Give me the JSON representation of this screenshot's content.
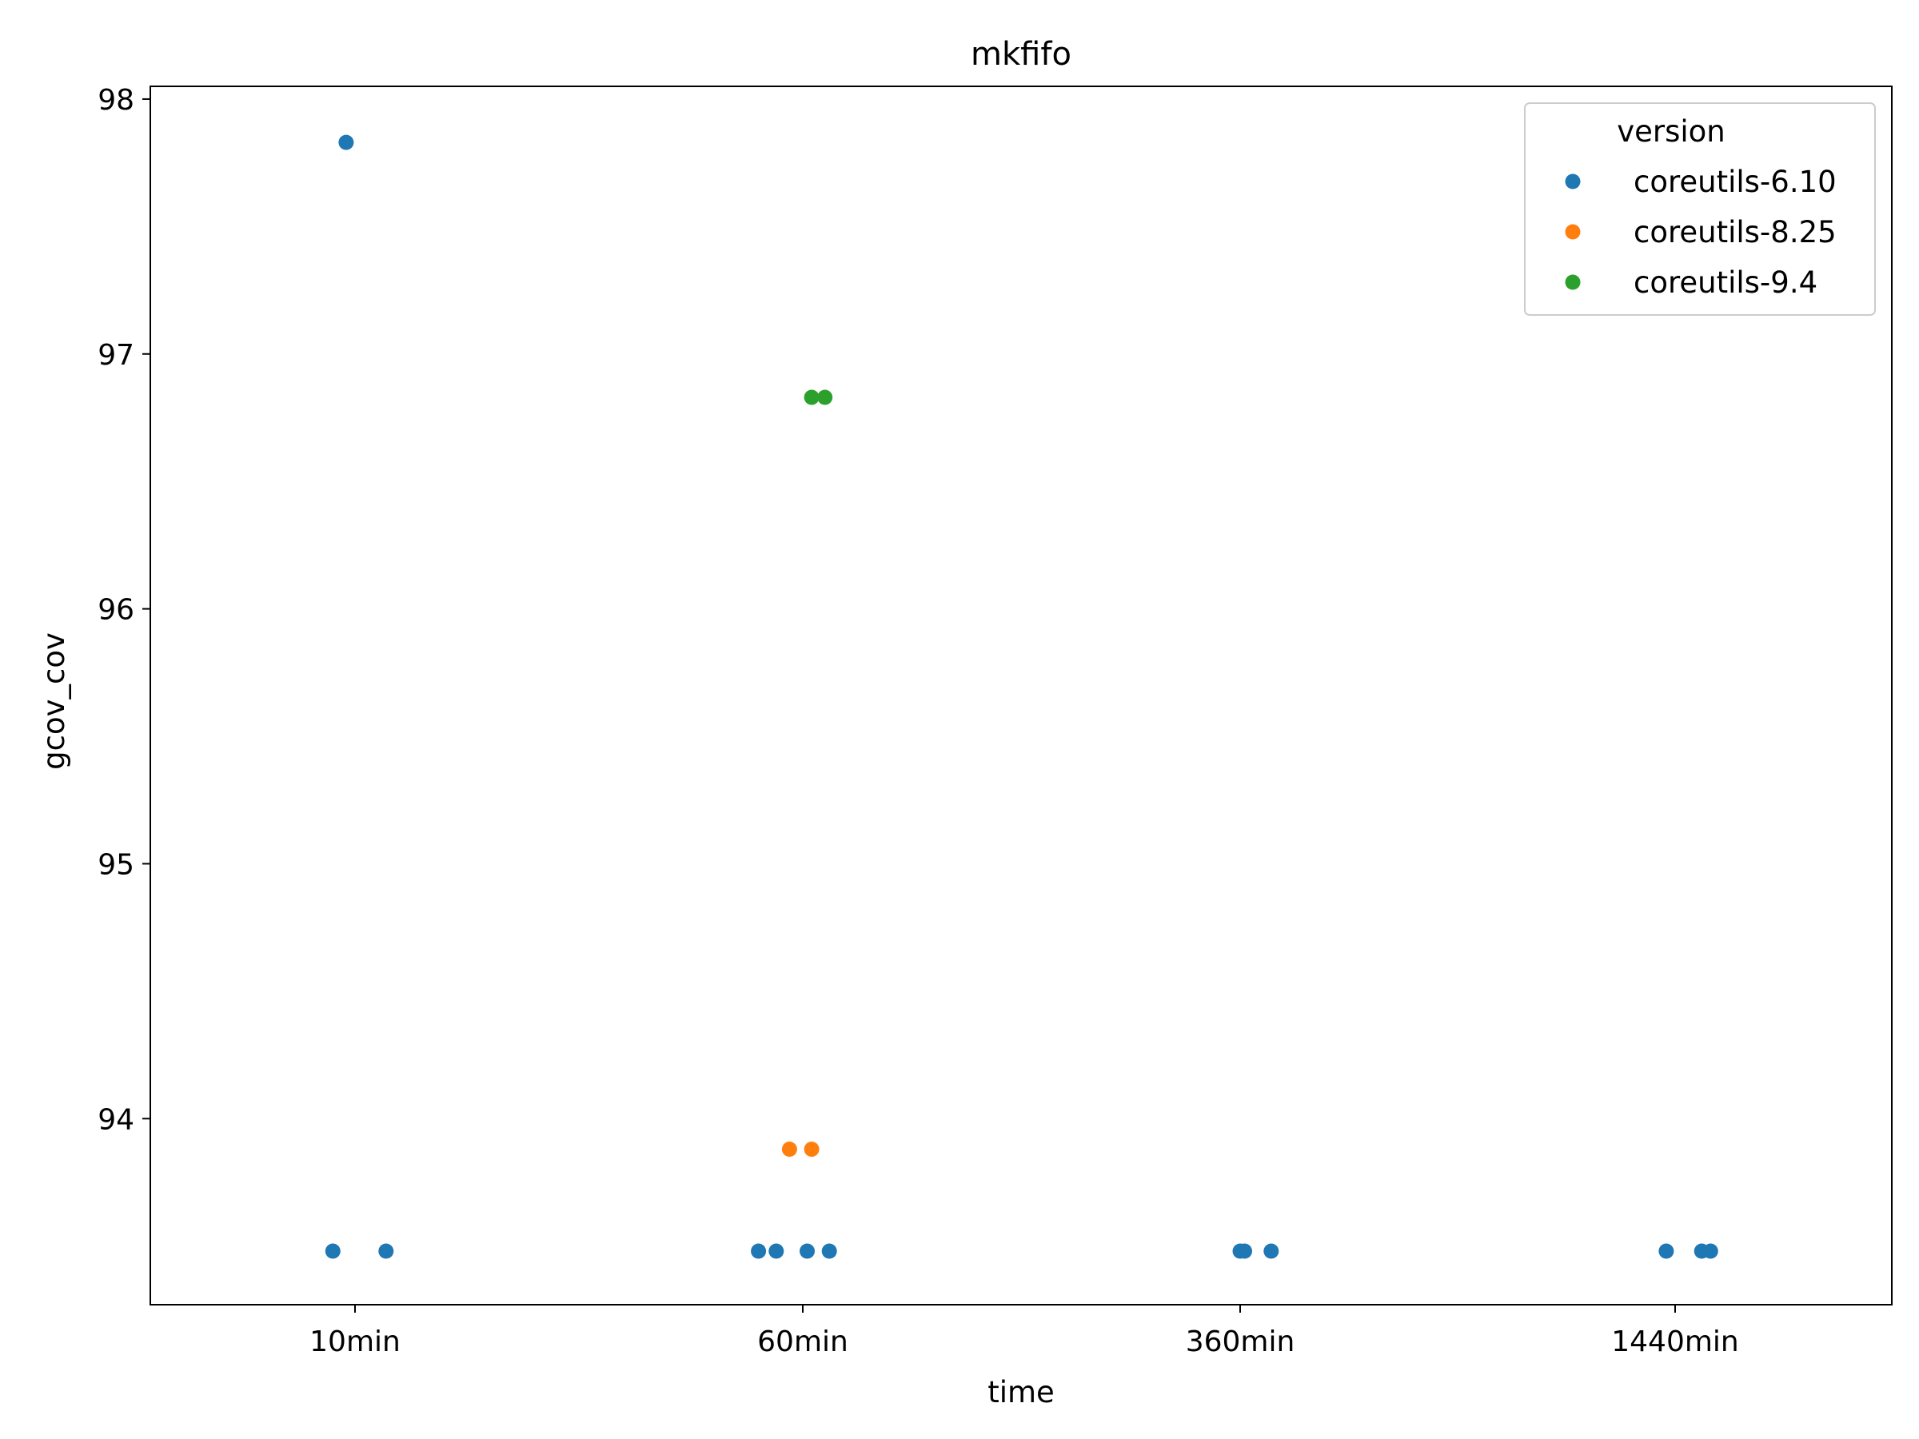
{
  "chart_data": {
    "type": "scatter",
    "title": "mkfifo",
    "xlabel": "time",
    "ylabel": "gcov_cov",
    "categories": [
      "10min",
      "60min",
      "360min",
      "1440min"
    ],
    "yticks": [
      94,
      95,
      96,
      97,
      98
    ],
    "ylim": [
      93.27,
      98.05
    ],
    "grid": false,
    "legend": {
      "title": "version",
      "placement": "top-right"
    },
    "series": [
      {
        "name": "coreutils-6.10",
        "color": "#1f77b4",
        "points": [
          {
            "x": "10min",
            "jitter": -0.02,
            "y": 97.83
          },
          {
            "x": "10min",
            "jitter": -0.05,
            "y": 93.48
          },
          {
            "x": "10min",
            "jitter": 0.07,
            "y": 93.48
          },
          {
            "x": "60min",
            "jitter": -0.1,
            "y": 93.48
          },
          {
            "x": "60min",
            "jitter": -0.06,
            "y": 93.48
          },
          {
            "x": "60min",
            "jitter": 0.01,
            "y": 93.48
          },
          {
            "x": "60min",
            "jitter": 0.06,
            "y": 93.48
          },
          {
            "x": "360min",
            "jitter": 0.0,
            "y": 93.48
          },
          {
            "x": "360min",
            "jitter": 0.01,
            "y": 93.48
          },
          {
            "x": "360min",
            "jitter": 0.07,
            "y": 93.48
          },
          {
            "x": "1440min",
            "jitter": -0.02,
            "y": 93.48
          },
          {
            "x": "1440min",
            "jitter": 0.06,
            "y": 93.48
          },
          {
            "x": "1440min",
            "jitter": 0.08,
            "y": 93.48
          }
        ]
      },
      {
        "name": "coreutils-8.25",
        "color": "#ff7f0e",
        "points": [
          {
            "x": "60min",
            "jitter": -0.03,
            "y": 93.88
          },
          {
            "x": "60min",
            "jitter": 0.02,
            "y": 93.88
          }
        ]
      },
      {
        "name": "coreutils-9.4",
        "color": "#2ca02c",
        "points": [
          {
            "x": "60min",
            "jitter": 0.02,
            "y": 96.83
          },
          {
            "x": "60min",
            "jitter": 0.05,
            "y": 96.83
          }
        ]
      }
    ]
  }
}
